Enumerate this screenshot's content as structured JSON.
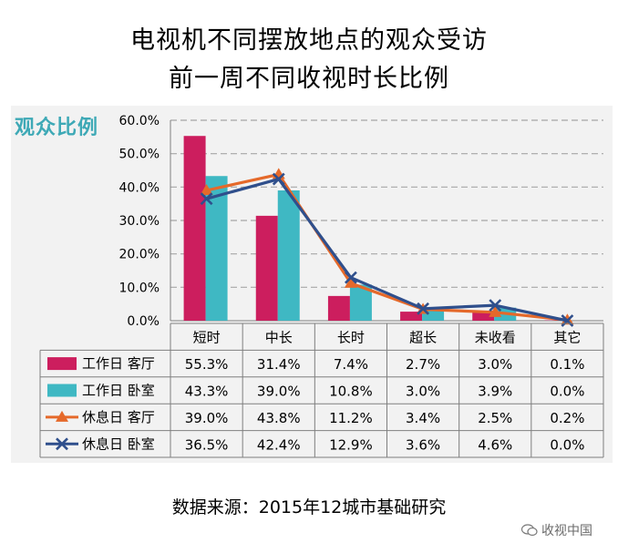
{
  "title_line1": "电视机不同摆放地点的观众受访",
  "title_line2": "前一周不同收视时长比例",
  "source": "数据来源：2015年12城市基础研究",
  "watermark": "收视中国",
  "chart_data": {
    "type": "bar",
    "ylabel": "观众比例",
    "ylim": [
      0,
      60
    ],
    "yticks": [
      "0.0%",
      "10.0%",
      "20.0%",
      "30.0%",
      "40.0%",
      "50.0%",
      "60.0%"
    ],
    "categories": [
      "短时",
      "中长",
      "长时",
      "超长",
      "未收看",
      "其它"
    ],
    "grid": true,
    "series": [
      {
        "name": "工作日  客厅",
        "kind": "bar",
        "color": "#cc1e5e",
        "values": [
          55.3,
          31.4,
          7.4,
          2.7,
          3.0,
          0.1
        ],
        "labels": [
          "55.3%",
          "31.4%",
          "7.4%",
          "2.7%",
          "3.0%",
          "0.1%"
        ]
      },
      {
        "name": "工作日  卧室",
        "kind": "bar",
        "color": "#3fb8c3",
        "values": [
          43.3,
          39.0,
          10.8,
          3.0,
          3.9,
          0.0
        ],
        "labels": [
          "43.3%",
          "39.0%",
          "10.8%",
          "3.0%",
          "3.9%",
          "0.0%"
        ]
      },
      {
        "name": "休息日  客厅",
        "kind": "line",
        "marker": "triangle",
        "color": "#e5692a",
        "values": [
          39.0,
          43.8,
          11.2,
          3.4,
          2.5,
          0.2
        ],
        "labels": [
          "39.0%",
          "43.8%",
          "11.2%",
          "3.4%",
          "2.5%",
          "0.2%"
        ]
      },
      {
        "name": "休息日  卧室",
        "kind": "line",
        "marker": "x",
        "color": "#2f4f8c",
        "values": [
          36.5,
          42.4,
          12.9,
          3.6,
          4.6,
          0.0
        ],
        "labels": [
          "36.5%",
          "42.4%",
          "12.9%",
          "3.6%",
          "4.6%",
          "0.0%"
        ]
      }
    ]
  }
}
